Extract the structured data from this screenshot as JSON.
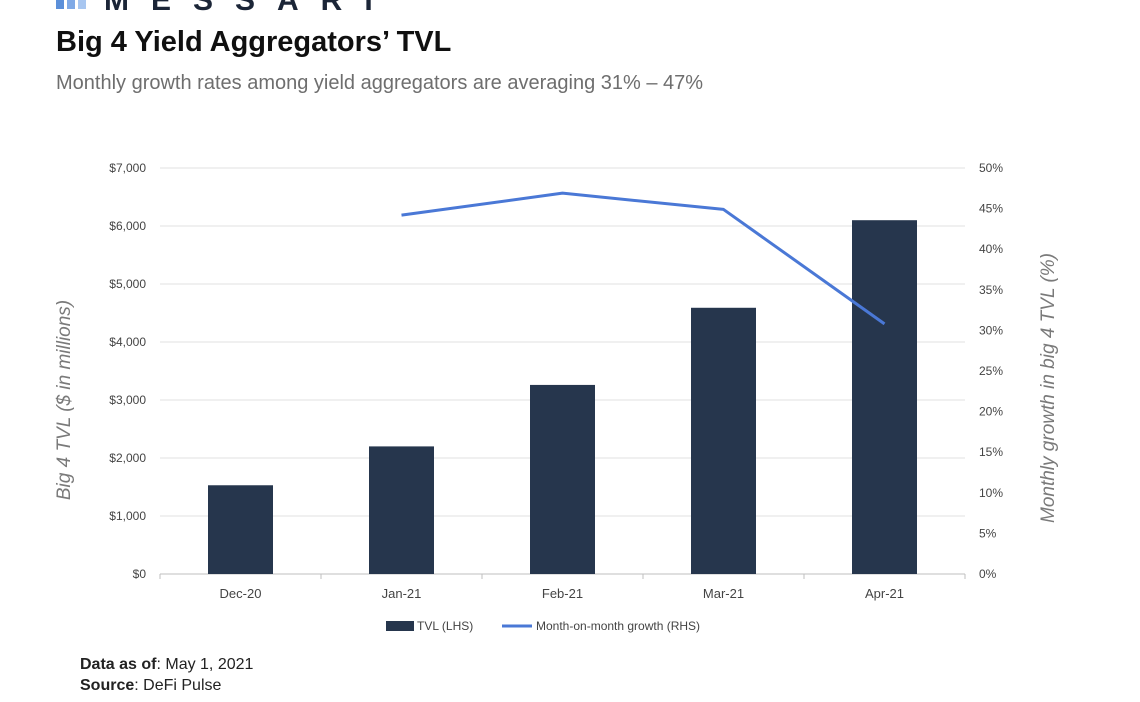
{
  "brand": {
    "name": "MESSARI",
    "mark_colors": [
      "#5b8fd9",
      "#7fa9e6",
      "#a8c6f0"
    ]
  },
  "header": {
    "title": "Big 4 Yield Aggregators’ TVL",
    "subtitle": "Monthly growth rates among yield aggregators are averaging 31% – 47%"
  },
  "chart_data": {
    "type": "bar",
    "categories": [
      "Dec-20",
      "Jan-21",
      "Feb-21",
      "Mar-21",
      "Apr-21"
    ],
    "series": [
      {
        "name": "TVL (LHS)",
        "type": "bar",
        "axis": "left",
        "color": "#26364d",
        "values": [
          1530,
          2200,
          3260,
          4590,
          6100
        ]
      },
      {
        "name": "Month-on-month growth (RHS)",
        "type": "line",
        "axis": "right",
        "color": "#4a78d6",
        "values": [
          null,
          44.2,
          46.9,
          44.9,
          30.8
        ]
      }
    ],
    "ylabel": "Big 4 TVL ($ in millions)",
    "y2label": "Monthly growth in big 4 TVL (%)",
    "ylim": [
      0,
      7000
    ],
    "y2lim": [
      0,
      50
    ],
    "yticks": [
      "$0",
      "$1,000",
      "$2,000",
      "$3,000",
      "$4,000",
      "$5,000",
      "$6,000",
      "$7,000"
    ],
    "y2ticks": [
      "0%",
      "5%",
      "10%",
      "15%",
      "20%",
      "25%",
      "30%",
      "35%",
      "40%",
      "45%",
      "50%"
    ],
    "grid": true,
    "legend": "bottom"
  },
  "footer": {
    "data_as_of_label": "Data as of",
    "data_as_of_value": ": May 1, 2021",
    "source_label": "Source",
    "source_value": ": DeFi Pulse"
  }
}
